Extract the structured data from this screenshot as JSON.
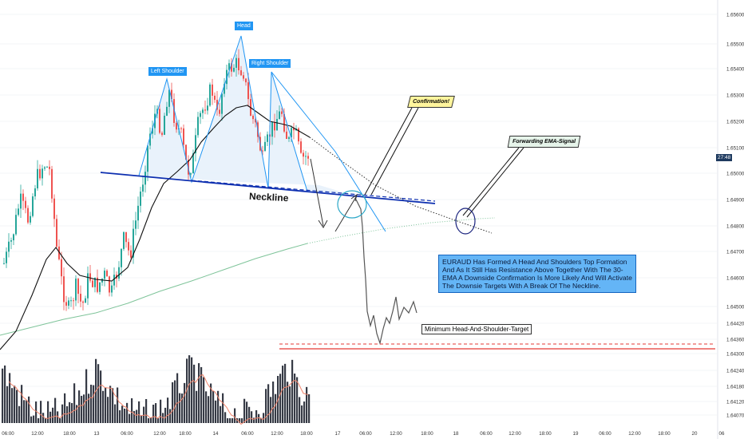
{
  "chart_data": {
    "type": "candlestick",
    "title": "",
    "y_axis": {
      "labels": [
        "1.65600",
        "1.65500",
        "1.65400",
        "1.65300",
        "1.65200",
        "1.65100",
        "1.65000",
        "1.64900",
        "1.64800",
        "1.64700",
        "1.64600",
        "1.64500",
        "1.64420",
        "1.64360",
        "1.64300",
        "1.64240",
        "1.64180",
        "1.64120",
        "1.64070"
      ],
      "ylim": [
        1.6405,
        1.6565
      ],
      "current_price_tag": "27:48"
    },
    "x_axis": {
      "labels": [
        "06:00",
        "12:00",
        "18:00",
        "13",
        "06:00",
        "12:00",
        "18:00",
        "14",
        "06:00",
        "12:00",
        "18:00",
        "17",
        "06:00",
        "12:00",
        "18:00",
        "18",
        "06:00",
        "12:00",
        "18:00",
        "19",
        "06:00",
        "12:00",
        "18:00",
        "20",
        "06"
      ]
    },
    "annotations": {
      "left_shoulder": "Left Shoulder",
      "head": "Head",
      "right_shoulder": "Right Shoulder",
      "neckline": "Neckline",
      "confirmation": "Confirmation!",
      "ema_signal": "Forwarding EMA-Signal",
      "description": "EURAUD Has Formed A Head And Shoulders Top Formation And As It Still Has Resistance Above Together With The 30-EMA A Downside Confirmation Is More Likely And Will Activate The Downsie Targets With A Break Of The Neckline.",
      "target": "Minimum Head-And-Shoulder-Target"
    },
    "colors": {
      "up": "#26a69a",
      "down": "#ef5350",
      "ema30": "#111111",
      "ema200": "#7fc49a",
      "volume": "#363a45",
      "volume_ma": "#f0846c",
      "pattern": "#2196f3",
      "neckline": "#0d2fb0",
      "target_line": "#e53935"
    }
  }
}
